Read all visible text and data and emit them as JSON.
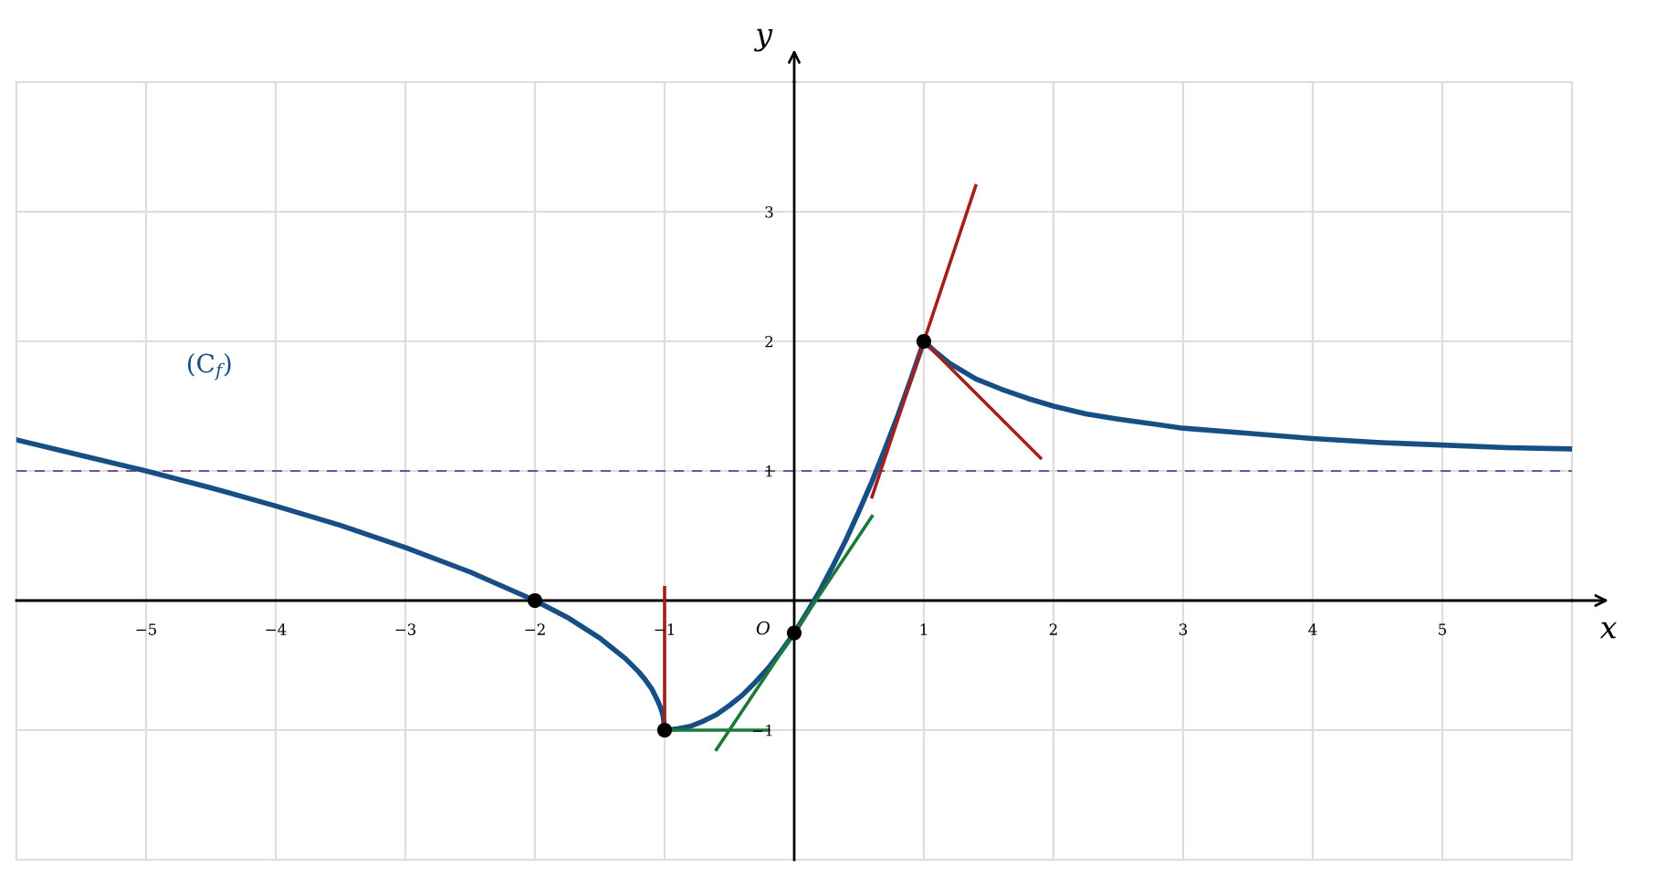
{
  "chart_data": {
    "type": "line",
    "xlabel": "x",
    "ylabel": "y",
    "xlim": [
      -6,
      6
    ],
    "ylim": [
      -2,
      4
    ],
    "xticks": [
      {
        "value": -6,
        "label": null
      },
      {
        "value": -5,
        "label": "−5"
      },
      {
        "value": -4,
        "label": "−4"
      },
      {
        "value": -3,
        "label": "−3"
      },
      {
        "value": -2,
        "label": "−2"
      },
      {
        "value": -1,
        "label": "−1"
      },
      1,
      2,
      3,
      4,
      5,
      {
        "value": 6,
        "label": null
      }
    ],
    "yticks": [
      {
        "value": -2,
        "label": null
      },
      {
        "value": -1,
        "label": "−1"
      },
      1,
      2,
      3,
      {
        "value": 4,
        "label": null
      }
    ],
    "grid": true,
    "ref_lines": [
      {
        "axis": "y",
        "value": 1,
        "color": "#7a4e96",
        "line_style": "dashed"
      }
    ],
    "annotations": [
      "O"
    ],
    "series": [
      {
        "name": "(C$_{f}$)",
        "color": "#174f84",
        "line_style": "solid",
        "x": [
          -6,
          -5.5,
          -5,
          -4.5,
          -4,
          -3.5,
          -3,
          -2.5,
          -2,
          -1.75,
          -1.5,
          -1.4,
          -1.3,
          -1.2,
          -1.15,
          -1.1,
          -1.05,
          -1.03,
          -1.02,
          -1.01,
          -1,
          -0.9,
          -0.8,
          -0.7,
          -0.6,
          -0.5,
          -0.4,
          -0.3,
          -0.2,
          -0.1,
          0,
          0.1,
          0.2,
          0.3,
          0.4,
          0.5,
          0.6,
          0.7,
          0.8,
          0.9,
          1,
          1.1,
          1.2,
          1.3,
          1.4,
          1.6,
          1.8,
          2,
          2.25,
          2.5,
          3,
          3.5,
          4,
          4.5,
          5,
          5.5,
          6
        ],
        "values": [
          1.24,
          1.12,
          1.0,
          0.87,
          0.73,
          0.58,
          0.41,
          0.22,
          0,
          -0.13,
          -0.29,
          -0.37,
          -0.45,
          -0.55,
          -0.61,
          -0.68,
          -0.78,
          -0.83,
          -0.86,
          -0.9,
          -1,
          -0.99,
          -0.97,
          -0.93,
          -0.88,
          -0.81,
          -0.73,
          -0.63,
          -0.52,
          -0.39,
          -0.25,
          -0.09,
          0.08,
          0.27,
          0.47,
          0.69,
          0.92,
          1.17,
          1.43,
          1.71,
          2,
          1.91,
          1.83,
          1.77,
          1.71,
          1.63,
          1.56,
          1.5,
          1.44,
          1.4,
          1.33,
          1.29,
          1.25,
          1.22,
          1.2,
          1.18,
          1.17
        ]
      },
      {
        "color": "#a4201d",
        "line_style": "solid",
        "x": [
          -1,
          -1
        ],
        "values": [
          -1,
          0.1
        ]
      },
      {
        "color": "#1a7a3a",
        "line_style": "solid",
        "x": [
          -1,
          -0.2
        ],
        "values": [
          -1,
          -1
        ]
      },
      {
        "color": "#1a7a3a",
        "line_style": "solid",
        "x": [
          -0.6,
          0.6
        ],
        "values": [
          -1.15,
          0.65
        ]
      },
      {
        "color": "#a4201d",
        "line_style": "solid",
        "x": [
          0.6,
          1.4
        ],
        "values": [
          0.8,
          3.2
        ]
      },
      {
        "color": "#a4201d",
        "line_style": "solid",
        "x": [
          1,
          1.9
        ],
        "values": [
          2,
          1.1
        ]
      },
      {
        "type": "scatter",
        "color": "#000000",
        "marker": "circle",
        "x": [
          -2,
          -1,
          0,
          1
        ],
        "values": [
          0,
          -1,
          -0.25,
          2
        ]
      }
    ]
  }
}
